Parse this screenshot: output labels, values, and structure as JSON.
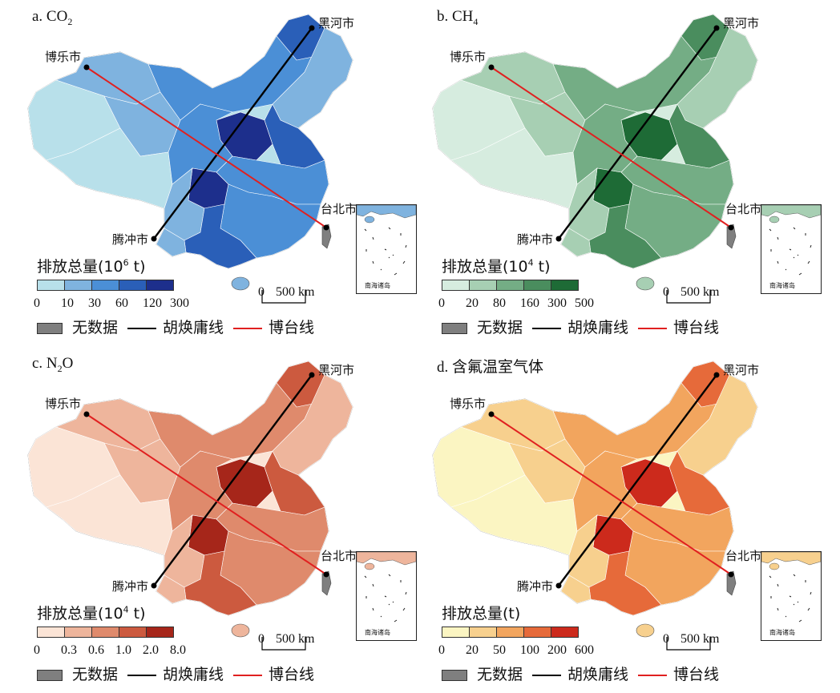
{
  "common": {
    "cities": {
      "heihe": "黑河市",
      "bole": "博乐市",
      "tengchong": "腾冲市",
      "taipei": "台北市"
    },
    "scale": {
      "zero": "0",
      "value": "500 km"
    },
    "inset_label": "南海诸岛",
    "key": {
      "nodata": "无数据",
      "hu_line": "胡焕庸线",
      "bo_line": "博台线"
    },
    "line_colors": {
      "hu_line": "#000000",
      "bo_line": "#e02020"
    }
  },
  "panels": [
    {
      "id": "a",
      "title_prefix": "a. CO",
      "title_sub": "2",
      "title_suffix": "",
      "legend_title_prefix": "排放总量(10",
      "legend_title_sup": "6",
      "legend_title_suffix": " t)",
      "tick_labels": [
        "0",
        "10",
        "30",
        "60",
        "120",
        "300"
      ],
      "colors": [
        "#b8e0ea",
        "#7fb3df",
        "#4b8fd6",
        "#2a5fb8",
        "#1d2f8c"
      ],
      "nodata_color": "#7f7f7f"
    },
    {
      "id": "b",
      "title_prefix": "b. CH",
      "title_sub": "4",
      "title_suffix": "",
      "legend_title_prefix": "排放总量(10",
      "legend_title_sup": "4",
      "legend_title_suffix": " t)",
      "tick_labels": [
        "0",
        "20",
        "80",
        "160",
        "300",
        "500"
      ],
      "colors": [
        "#d6ecdf",
        "#a7cfb3",
        "#74ad85",
        "#4a8d5e",
        "#1e6b36"
      ],
      "nodata_color": "#7f7f7f"
    },
    {
      "id": "c",
      "title_prefix": "c. N",
      "title_sub": "2",
      "title_suffix": "O",
      "legend_title_prefix": "排放总量(10",
      "legend_title_sup": "4",
      "legend_title_suffix": " t)",
      "tick_labels": [
        "0",
        "0.3",
        "0.6",
        "1.0",
        "2.0",
        "8.0"
      ],
      "colors": [
        "#fbe4d6",
        "#eeb59c",
        "#df8a6c",
        "#cc5a3f",
        "#a6261a"
      ],
      "nodata_color": "#7f7f7f"
    },
    {
      "id": "d",
      "title_prefix": "d. 含氟温室气体",
      "title_sub": "",
      "title_suffix": "",
      "legend_title_prefix": "排放总量(t)",
      "legend_title_sup": "",
      "legend_title_suffix": "",
      "tick_labels": [
        "0",
        "20",
        "50",
        "100",
        "200",
        "600"
      ],
      "colors": [
        "#fbf5c2",
        "#f7d08e",
        "#f2a55e",
        "#e66a3a",
        "#cc2a1c"
      ],
      "nodata_color": "#7f7f7f"
    }
  ]
}
